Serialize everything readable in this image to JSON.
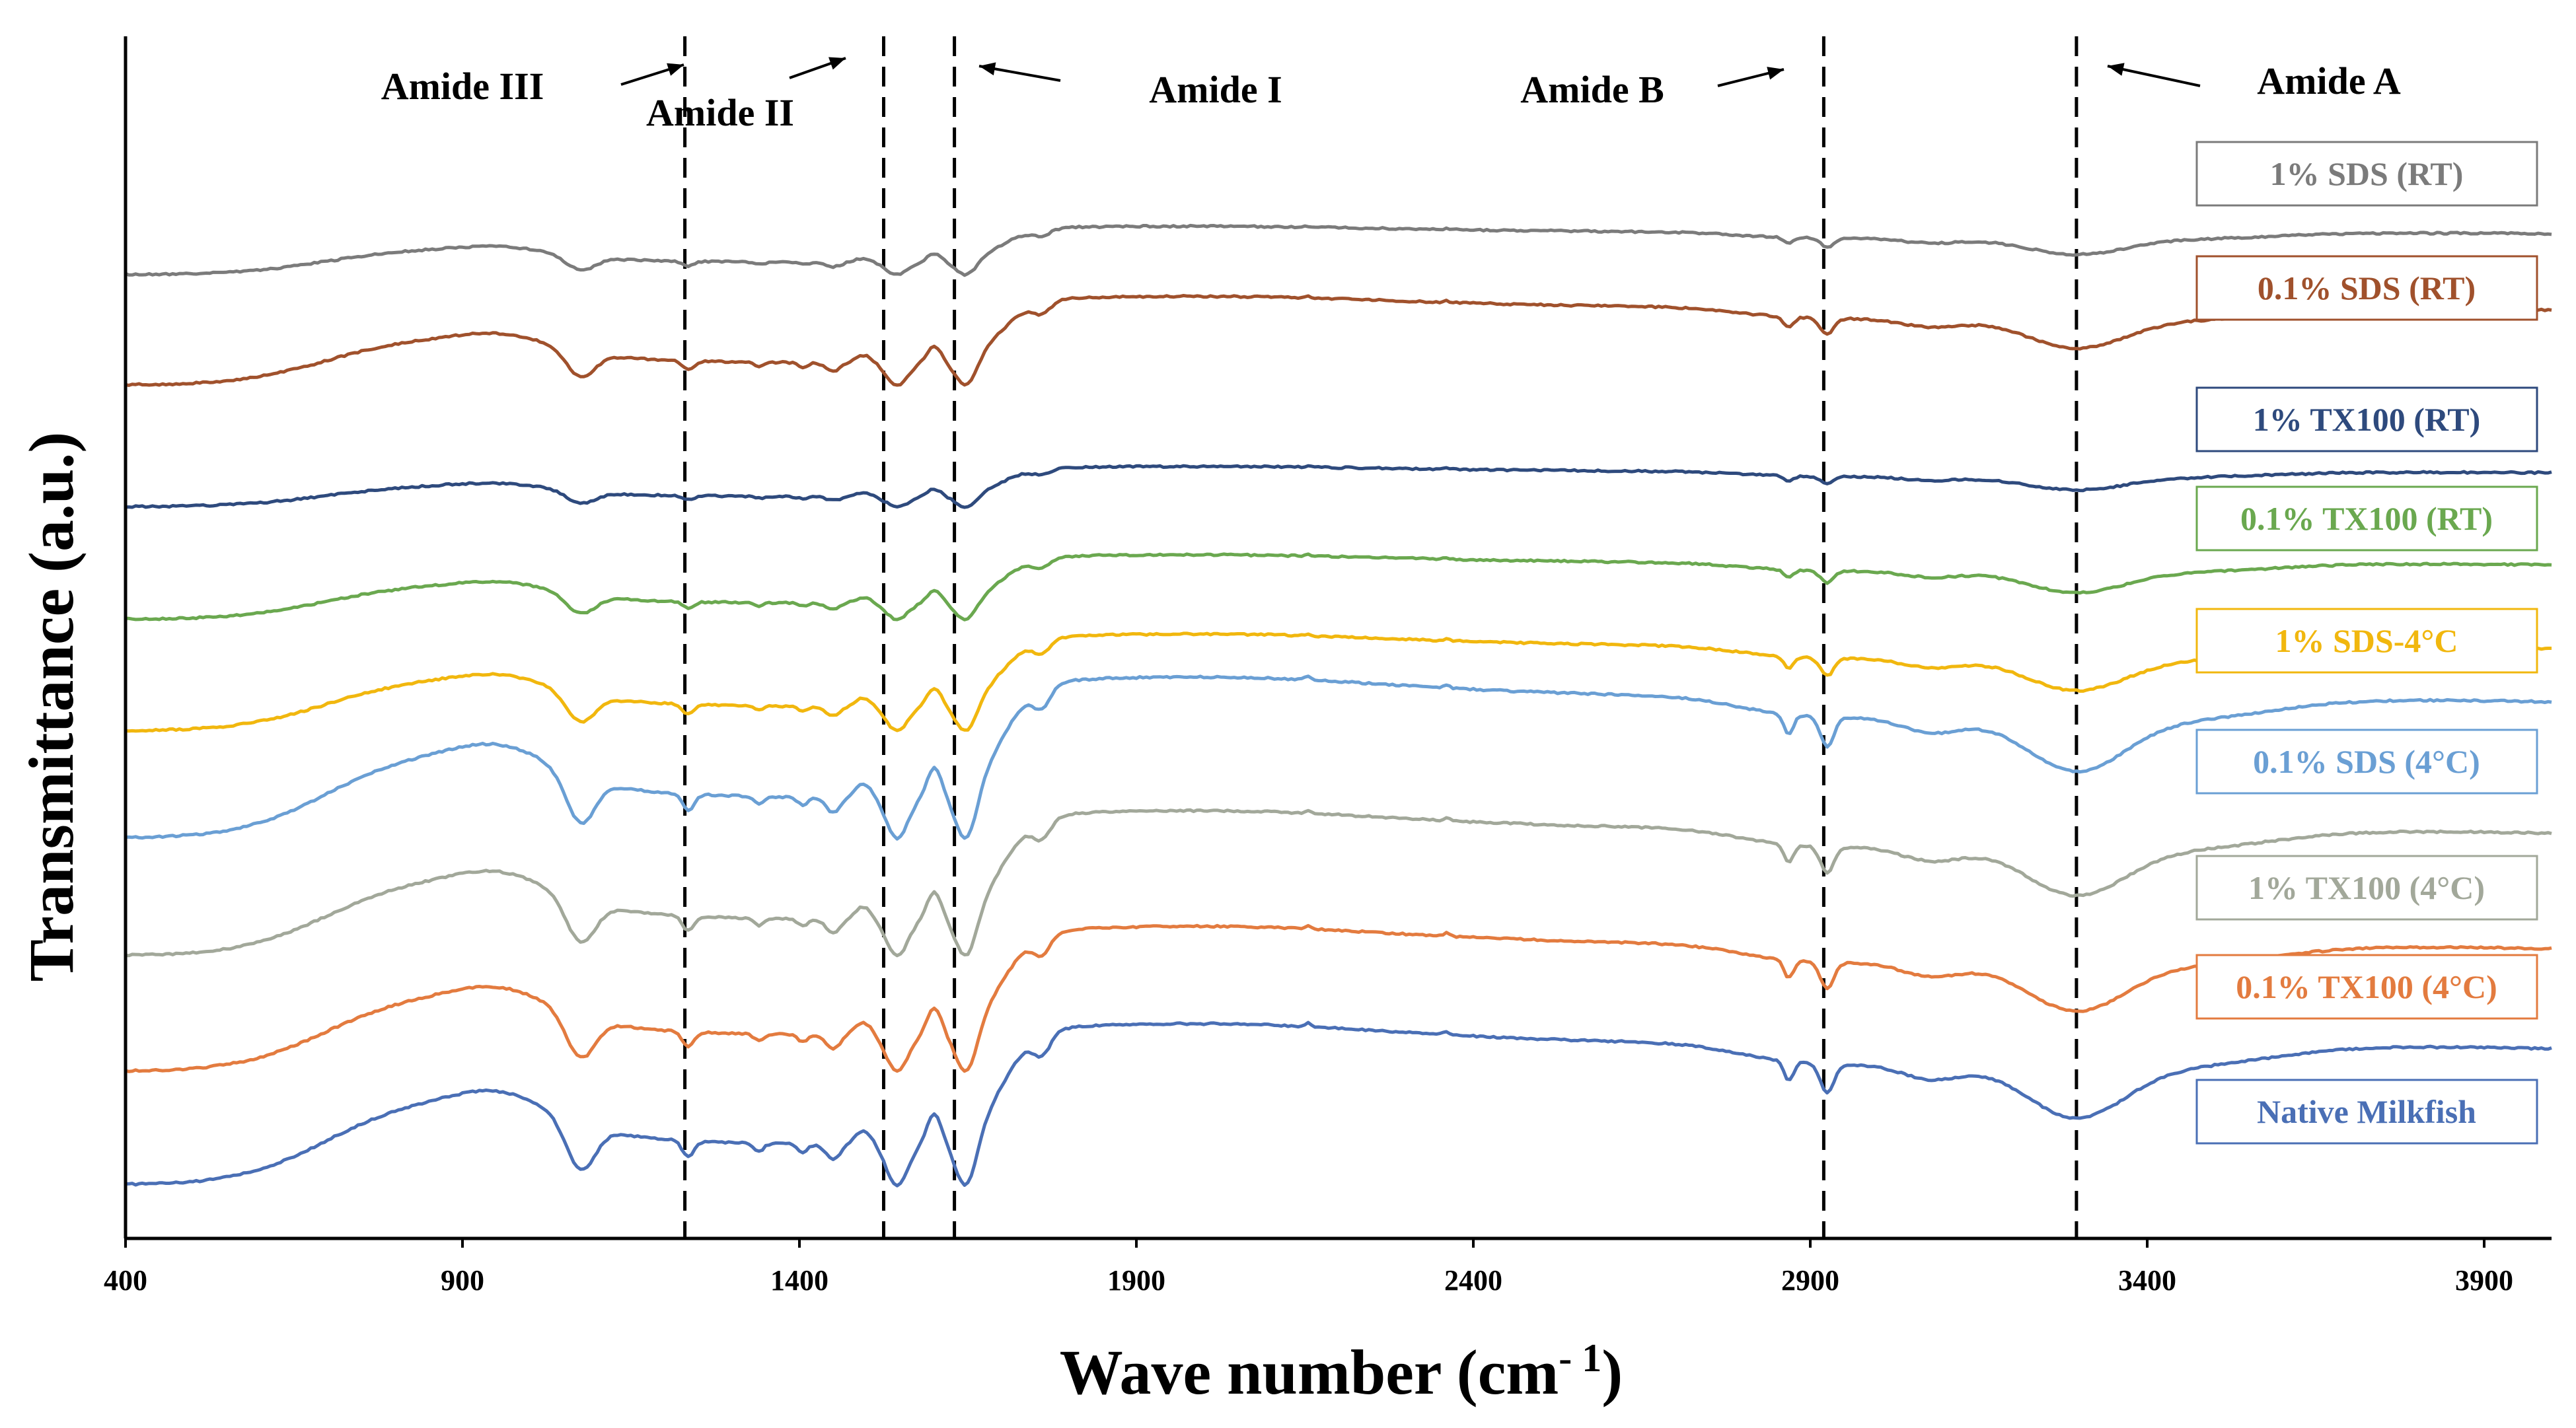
{
  "chart_data": {
    "type": "line",
    "title": "",
    "xlabel": "Wave number (cm",
    "xlabel_sup": "- 1",
    "xlabel_close": ")",
    "ylabel": "Transmittance  (a.u.)",
    "xlim": [
      400,
      4000
    ],
    "x_ticks": [
      "400",
      "900",
      "1400",
      "1900",
      "2400",
      "2900",
      "3400",
      "3900"
    ],
    "grid": false,
    "band_markers": [
      1230,
      1525,
      1630,
      2920,
      3295
    ],
    "annotations": [
      {
        "text": "Amide III",
        "x": 900
      },
      {
        "text": "Amide II",
        "x": 1270
      },
      {
        "text": "Amide I",
        "x": 1800
      },
      {
        "text": "Amide B",
        "x": 2580
      },
      {
        "text": "Amide A",
        "x": 3530
      }
    ],
    "series": [
      {
        "name": "1% SDS (RT)",
        "color": "#7b7b7b",
        "offset": 8,
        "scale": 0.3,
        "edge_gain": 0.4
      },
      {
        "name": "0.1% SDS (RT)",
        "color": "#a0512c",
        "offset": 7,
        "scale": 0.55,
        "edge_gain": 0.3
      },
      {
        "name": "1% TX100 (RT)",
        "color": "#2e4a7d",
        "offset": 6,
        "scale": 0.25,
        "edge_gain": 0.15
      },
      {
        "name": "0.1% TX100 (RT)",
        "color": "#6aa84f",
        "offset": 5,
        "scale": 0.4,
        "edge_gain": 0.3
      },
      {
        "name": "1% SDS-4°C",
        "color": "#f1b70e",
        "offset": 4,
        "scale": 0.6,
        "edge_gain": 0.7
      },
      {
        "name": "0.1% SDS (4°C)",
        "color": "#6a9fd4",
        "offset": 3,
        "scale": 1.0,
        "edge_gain": 1.0
      },
      {
        "name": "1% TX100 (4°C)",
        "color": "#a2a89a",
        "offset": 2,
        "scale": 0.9,
        "edge_gain": 1.0
      },
      {
        "name": "0.1% TX100 (4°C)",
        "color": "#e37b3f",
        "offset": 1,
        "scale": 0.9,
        "edge_gain": 1.0
      },
      {
        "name": "Native Milkfish",
        "color": "#4a6fb5",
        "offset": 0,
        "scale": 1.0,
        "edge_gain": 1.0
      }
    ]
  }
}
